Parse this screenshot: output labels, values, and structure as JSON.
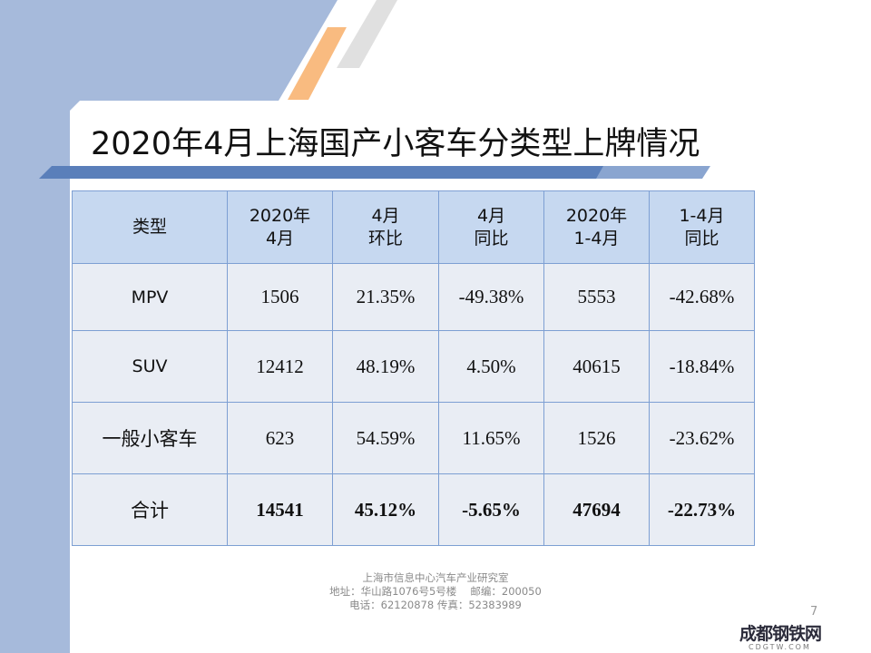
{
  "title": "2020年4月上海国产小客车分类型上牌情况",
  "table": {
    "headers": [
      [
        "类型"
      ],
      [
        "2020年",
        "4月"
      ],
      [
        "4月",
        "环比"
      ],
      [
        "4月",
        "同比"
      ],
      [
        "2020年",
        "1-4月"
      ],
      [
        "1-4月",
        "同比"
      ]
    ],
    "rows": [
      [
        "MPV",
        "1506",
        "21.35%",
        "-49.38%",
        "5553",
        "-42.68%"
      ],
      [
        "SUV",
        "12412",
        "48.19%",
        "4.50%",
        "40615",
        "-18.84%"
      ],
      [
        "一般小客车",
        "623",
        "54.59%",
        "11.65%",
        "1526",
        "-23.62%"
      ],
      [
        "合计",
        "14541",
        "45.12%",
        "-5.65%",
        "47694",
        "-22.73%"
      ]
    ]
  },
  "footer": {
    "line1": "上海市信息中心汽车产业研究室",
    "line2": "地址：华山路1076号5号楼　 邮编：200050",
    "line3": "电话：62120878  传真：52383989"
  },
  "page_number": "7",
  "watermark": {
    "name": "成都钢铁网",
    "domain": "CDGTW.COM"
  }
}
